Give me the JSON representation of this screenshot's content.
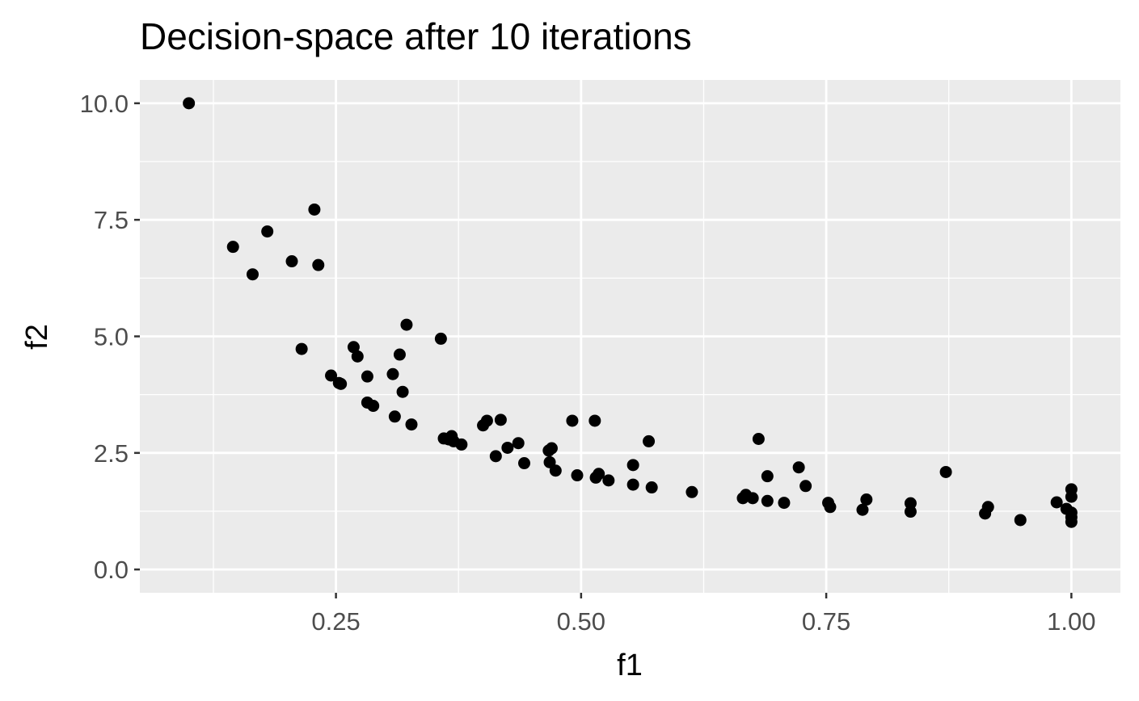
{
  "chart_data": {
    "type": "scatter",
    "title": "Decision-space after 10 iterations",
    "xlabel": "f1",
    "ylabel": "f2",
    "xlim": [
      0.05,
      1.05
    ],
    "ylim": [
      -0.5,
      10.5
    ],
    "x_ticks": [
      0.25,
      0.5,
      0.75,
      1.0
    ],
    "x_tick_labels": [
      "0.25",
      "0.50",
      "0.75",
      "1.00"
    ],
    "y_ticks": [
      0.0,
      2.5,
      5.0,
      7.5,
      10.0
    ],
    "y_tick_labels": [
      "0.0",
      "2.5",
      "5.0",
      "7.5",
      "10.0"
    ],
    "grid": true,
    "panel_color": "#ebebeb",
    "grid_color": "#ffffff",
    "point_color": "#000000",
    "points": [
      [
        0.1,
        10.0
      ],
      [
        0.145,
        6.92
      ],
      [
        0.165,
        6.33
      ],
      [
        0.18,
        7.25
      ],
      [
        0.205,
        6.61
      ],
      [
        0.215,
        4.73
      ],
      [
        0.228,
        7.72
      ],
      [
        0.232,
        6.53
      ],
      [
        0.245,
        4.16
      ],
      [
        0.253,
        4.0
      ],
      [
        0.255,
        3.98
      ],
      [
        0.268,
        4.77
      ],
      [
        0.272,
        4.57
      ],
      [
        0.282,
        4.14
      ],
      [
        0.282,
        3.58
      ],
      [
        0.288,
        3.51
      ],
      [
        0.308,
        4.19
      ],
      [
        0.31,
        3.28
      ],
      [
        0.315,
        4.61
      ],
      [
        0.318,
        3.81
      ],
      [
        0.322,
        5.25
      ],
      [
        0.327,
        3.11
      ],
      [
        0.357,
        4.95
      ],
      [
        0.36,
        2.81
      ],
      [
        0.365,
        2.79
      ],
      [
        0.368,
        2.86
      ],
      [
        0.37,
        2.75
      ],
      [
        0.378,
        2.68
      ],
      [
        0.4,
        3.09
      ],
      [
        0.404,
        3.19
      ],
      [
        0.413,
        2.43
      ],
      [
        0.418,
        3.21
      ],
      [
        0.425,
        2.61
      ],
      [
        0.436,
        2.71
      ],
      [
        0.442,
        2.28
      ],
      [
        0.467,
        2.55
      ],
      [
        0.468,
        2.3
      ],
      [
        0.47,
        2.6
      ],
      [
        0.474,
        2.12
      ],
      [
        0.491,
        3.19
      ],
      [
        0.496,
        2.02
      ],
      [
        0.514,
        3.19
      ],
      [
        0.515,
        1.97
      ],
      [
        0.518,
        2.05
      ],
      [
        0.528,
        1.91
      ],
      [
        0.553,
        2.24
      ],
      [
        0.553,
        1.82
      ],
      [
        0.569,
        2.75
      ],
      [
        0.572,
        1.76
      ],
      [
        0.613,
        1.66
      ],
      [
        0.665,
        1.53
      ],
      [
        0.668,
        1.6
      ],
      [
        0.675,
        1.53
      ],
      [
        0.681,
        2.8
      ],
      [
        0.69,
        2.0
      ],
      [
        0.69,
        1.47
      ],
      [
        0.707,
        1.43
      ],
      [
        0.722,
        2.19
      ],
      [
        0.729,
        1.79
      ],
      [
        0.752,
        1.43
      ],
      [
        0.754,
        1.34
      ],
      [
        0.787,
        1.28
      ],
      [
        0.791,
        1.5
      ],
      [
        0.836,
        1.42
      ],
      [
        0.836,
        1.24
      ],
      [
        0.872,
        2.09
      ],
      [
        0.912,
        1.2
      ],
      [
        0.915,
        1.34
      ],
      [
        0.948,
        1.06
      ],
      [
        0.985,
        1.44
      ],
      [
        0.995,
        1.3
      ],
      [
        1.0,
        1.72
      ],
      [
        1.0,
        1.56
      ],
      [
        1.0,
        1.22
      ],
      [
        1.0,
        1.12
      ],
      [
        1.0,
        1.02
      ]
    ]
  }
}
